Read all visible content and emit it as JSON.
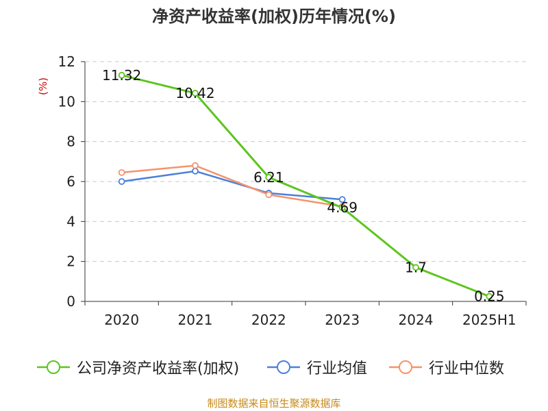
{
  "title": "净资产收益率(加权)历年情况(%)",
  "source": "制图数据来自恒生聚源数据库",
  "chart_data": {
    "type": "line",
    "categories": [
      "2020",
      "2021",
      "2022",
      "2023",
      "2024",
      "2025H1"
    ],
    "ylabel": "(%)",
    "ylim": [
      0,
      12
    ],
    "yticks": [
      0,
      2,
      4,
      6,
      8,
      10,
      12
    ],
    "grid": "horizontal-dashed",
    "legend_position": "bottom",
    "series": [
      {
        "name": "公司净资产收益率(加权)",
        "color": "#5cc51e",
        "values": [
          11.32,
          10.42,
          6.21,
          4.69,
          1.7,
          0.25
        ],
        "labels": [
          "11.32",
          "10.42",
          "6.21",
          "4.69",
          "1.7",
          "0.25"
        ]
      },
      {
        "name": "行业均值",
        "color": "#4a7fdc",
        "values": [
          6.0,
          6.52,
          5.42,
          5.1,
          null,
          null
        ]
      },
      {
        "name": "行业中位数",
        "color": "#f5936a",
        "values": [
          6.45,
          6.8,
          5.34,
          4.75,
          null,
          null
        ]
      }
    ]
  }
}
